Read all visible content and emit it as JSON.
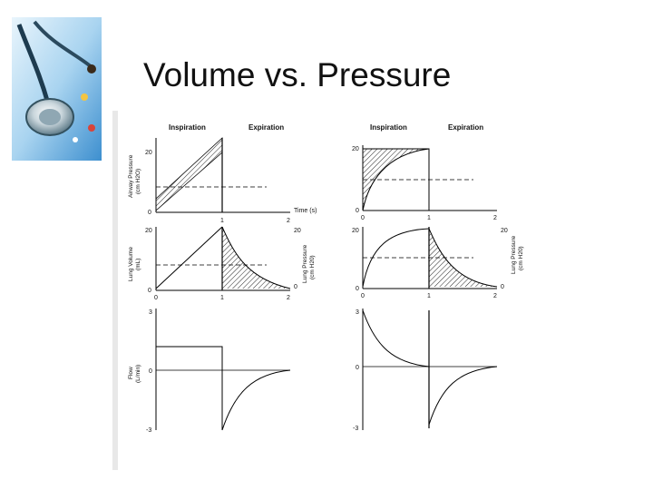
{
  "slide": {
    "title": "Volume vs. Pressure"
  },
  "logo": {
    "icon": "stethoscope-pills-icon",
    "colors": {
      "sky": "#a9d4f0",
      "deep": "#3d8fcf"
    }
  },
  "figure": {
    "phase_labels": {
      "inspiration": "Inspiration",
      "expiration": "Expiration"
    },
    "time_axis_label": "Time (s)",
    "y_labels": {
      "airway_pressure": "Airway Pressure",
      "airway_pressure_unit": "(cm H2O)",
      "lung_volume": "Lung Volume",
      "lung_volume_unit": "(mL)",
      "flow": "Flow",
      "flow_unit": "(L/min)",
      "lung_pressure": "Lung Pressure",
      "lung_pressure_unit": "(cm H20)"
    },
    "ticks": {
      "zero": "0",
      "one": "1",
      "two": "2",
      "twenty": "20",
      "three": "3",
      "minus_three": "-3"
    }
  }
}
